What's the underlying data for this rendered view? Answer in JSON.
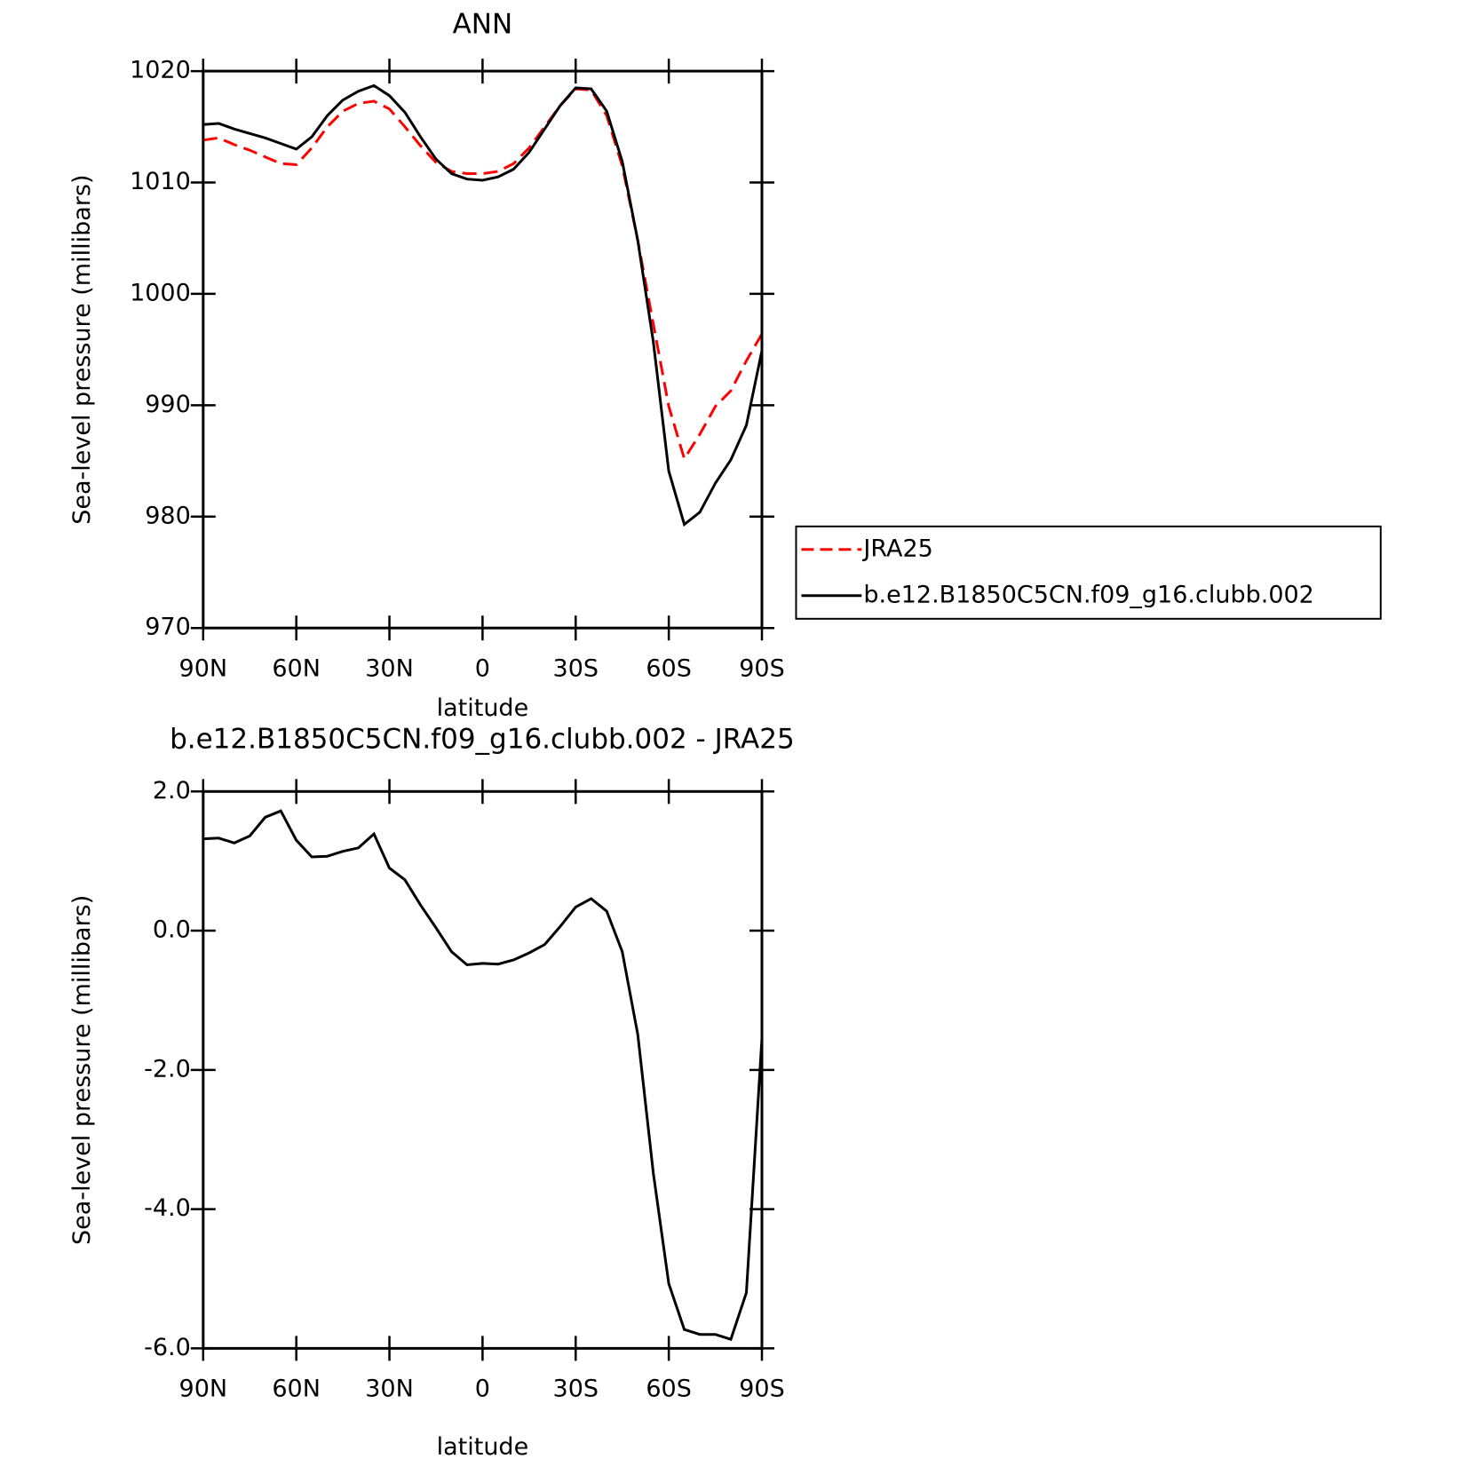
{
  "chart_data": [
    {
      "type": "line",
      "title": "ANN",
      "xlabel": "latitude",
      "ylabel": "Sea-level pressure (millibars)",
      "x": [
        90,
        85,
        80,
        75,
        70,
        65,
        60,
        55,
        50,
        45,
        40,
        35,
        30,
        25,
        20,
        15,
        10,
        5,
        0,
        -5,
        -10,
        -15,
        -20,
        -25,
        -30,
        -35,
        -40,
        -45,
        -50,
        -55,
        -60,
        -65,
        -70,
        -75,
        -80,
        -85,
        -90
      ],
      "series": [
        {
          "name": "JRA25",
          "color": "#ff0000",
          "dash": true,
          "values": [
            1013.8,
            1014.0,
            1013.4,
            1012.9,
            1012.3,
            1011.7,
            1011.6,
            1013.1,
            1015.0,
            1016.4,
            1017.1,
            1017.3,
            1016.6,
            1015.0,
            1013.3,
            1011.8,
            1011.0,
            1010.8,
            1010.8,
            1011.0,
            1011.7,
            1013.1,
            1015.0,
            1016.9,
            1018.4,
            1018.3,
            1016.0,
            1011.5,
            1004.8,
            997.3,
            989.9,
            985.2,
            987.4,
            989.9,
            991.3,
            994.0,
            996.4
          ]
        },
        {
          "name": "b.e12.B1850C5CN.f09_g16.clubb.002",
          "color": "#000000",
          "dash": false,
          "values": [
            1015.2,
            1015.3,
            1014.8,
            1014.4,
            1014.0,
            1013.5,
            1013.0,
            1014.1,
            1016.0,
            1017.4,
            1018.2,
            1018.7,
            1017.8,
            1016.3,
            1014.1,
            1012.1,
            1010.8,
            1010.3,
            1010.2,
            1010.5,
            1011.2,
            1012.7,
            1014.8,
            1016.9,
            1018.5,
            1018.4,
            1016.4,
            1011.9,
            1004.8,
            995.7,
            984.1,
            979.3,
            980.4,
            983.0,
            985.1,
            988.2,
            994.9
          ]
        }
      ],
      "xlim": [
        90,
        -90
      ],
      "xticks": [
        {
          "value": 90,
          "label": "90N"
        },
        {
          "value": 60,
          "label": "60N"
        },
        {
          "value": 30,
          "label": "30N"
        },
        0,
        {
          "value": -30,
          "label": "30S"
        },
        {
          "value": -60,
          "label": "60S"
        },
        {
          "value": -90,
          "label": "90S"
        }
      ],
      "ylim": [
        970,
        1020
      ],
      "yticks": [
        970,
        980,
        990,
        1000,
        1010,
        1020
      ]
    },
    {
      "type": "line",
      "title": "b.e12.B1850C5CN.f09_g16.clubb.002 - JRA25",
      "xlabel": "latitude",
      "ylabel": "Sea-level pressure (millibars)",
      "x": [
        90,
        85,
        80,
        75,
        70,
        65,
        60,
        55,
        50,
        45,
        40,
        35,
        30,
        25,
        20,
        15,
        10,
        5,
        0,
        -5,
        -10,
        -15,
        -20,
        -25,
        -30,
        -35,
        -40,
        -45,
        -50,
        -55,
        -60,
        -65,
        -70,
        -75,
        -80,
        -85,
        -90
      ],
      "values": [
        1.32,
        1.33,
        1.26,
        1.36,
        1.63,
        1.72,
        1.3,
        1.06,
        1.07,
        1.14,
        1.19,
        1.39,
        0.9,
        0.73,
        0.37,
        0.04,
        -0.3,
        -0.49,
        -0.47,
        -0.48,
        -0.42,
        -0.32,
        -0.2,
        0.06,
        0.34,
        0.46,
        0.28,
        -0.3,
        -1.49,
        -3.48,
        -5.07,
        -5.73,
        -5.8,
        -5.8,
        -5.87,
        -5.2,
        -1.55
      ],
      "color": "#000000",
      "xlim": [
        90,
        -90
      ],
      "xticks": [
        {
          "value": 90,
          "label": "90N"
        },
        {
          "value": 60,
          "label": "60N"
        },
        {
          "value": 30,
          "label": "30N"
        },
        0,
        {
          "value": -30,
          "label": "30S"
        },
        {
          "value": -60,
          "label": "60S"
        },
        {
          "value": -90,
          "label": "90S"
        }
      ],
      "ylim": [
        -6,
        2
      ],
      "yticks": [
        {
          "value": -6,
          "label": "-6.0"
        },
        {
          "value": -4,
          "label": "-4.0"
        },
        {
          "value": -2,
          "label": "-2.0"
        },
        {
          "value": 0,
          "label": "0.0"
        },
        {
          "value": 2,
          "label": "2.0"
        }
      ]
    }
  ]
}
